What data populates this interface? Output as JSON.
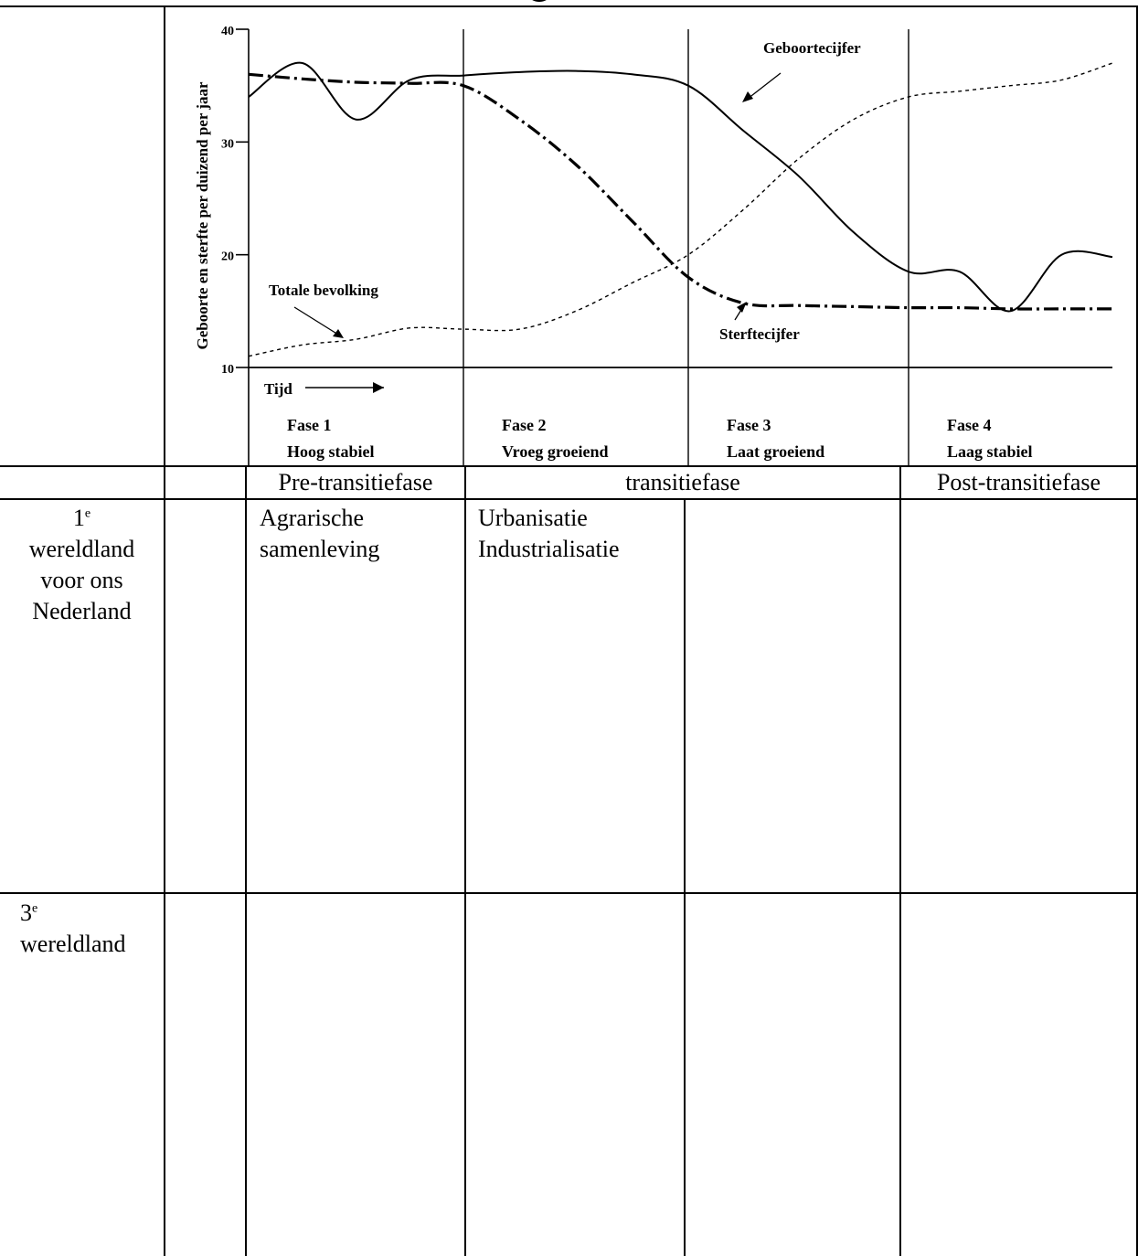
{
  "chart_data": {
    "type": "line",
    "ylabel": "Geboorte en sterfte per duizend per jaar",
    "xlabel": "Tijd",
    "ylim": [
      10,
      40
    ],
    "yticks": [
      10,
      20,
      30,
      40
    ],
    "phases": [
      {
        "title": "Fase 1",
        "subtitle": "Hoog stabiel"
      },
      {
        "title": "Fase 2",
        "subtitle": "Vroeg groeiend"
      },
      {
        "title": "Fase 3",
        "subtitle": "Laat groeiend"
      },
      {
        "title": "Fase 4",
        "subtitle": "Laag stabiel"
      }
    ],
    "annotations": [
      "Geboortecijfer",
      "Sterftecijfer",
      "Totale bevolking"
    ],
    "x": [
      0,
      0.25,
      0.5,
      0.75,
      1,
      1.25,
      1.5,
      1.75,
      2,
      2.25,
      2.5,
      2.75,
      3,
      3.25,
      3.5,
      3.75,
      4
    ],
    "series": [
      {
        "name": "Geboortecijfer",
        "style": "solid",
        "values": [
          34,
          37,
          32,
          35.5,
          35.9,
          36.2,
          36.3,
          36,
          35,
          31,
          27,
          22,
          18.5,
          18.5,
          15,
          20,
          19.8
        ]
      },
      {
        "name": "Sterftecijfer",
        "style": "dash-dot",
        "values": [
          36,
          35.6,
          35.3,
          35.2,
          35,
          32,
          28,
          23,
          18,
          15.7,
          15.5,
          15.4,
          15.3,
          15.3,
          15.2,
          15.2,
          15.2
        ]
      },
      {
        "name": "Totale bevolking",
        "style": "dotted",
        "values": [
          11,
          12,
          12.5,
          13.5,
          13.4,
          13.4,
          15,
          17.5,
          20,
          24,
          28.5,
          32,
          34,
          34.5,
          35,
          35.5,
          37
        ]
      }
    ]
  },
  "table": {
    "header_row": [
      "",
      "",
      "Pre-transitiefase",
      "transitiefase",
      "Post-transitiefase"
    ],
    "rows": [
      {
        "label_main": "1",
        "label_sup": "e",
        "label_lines": [
          "wereldland",
          "voor ons",
          "Nederland"
        ],
        "cells": [
          [
            "Agrarische",
            "samenleving"
          ],
          [
            "Urbanisatie",
            "Industrialisatie"
          ],
          [],
          []
        ]
      },
      {
        "label_main": "3",
        "label_sup": "e",
        "label_lines": [
          "wereldland"
        ],
        "cells": [
          [],
          [],
          [],
          []
        ]
      }
    ]
  }
}
